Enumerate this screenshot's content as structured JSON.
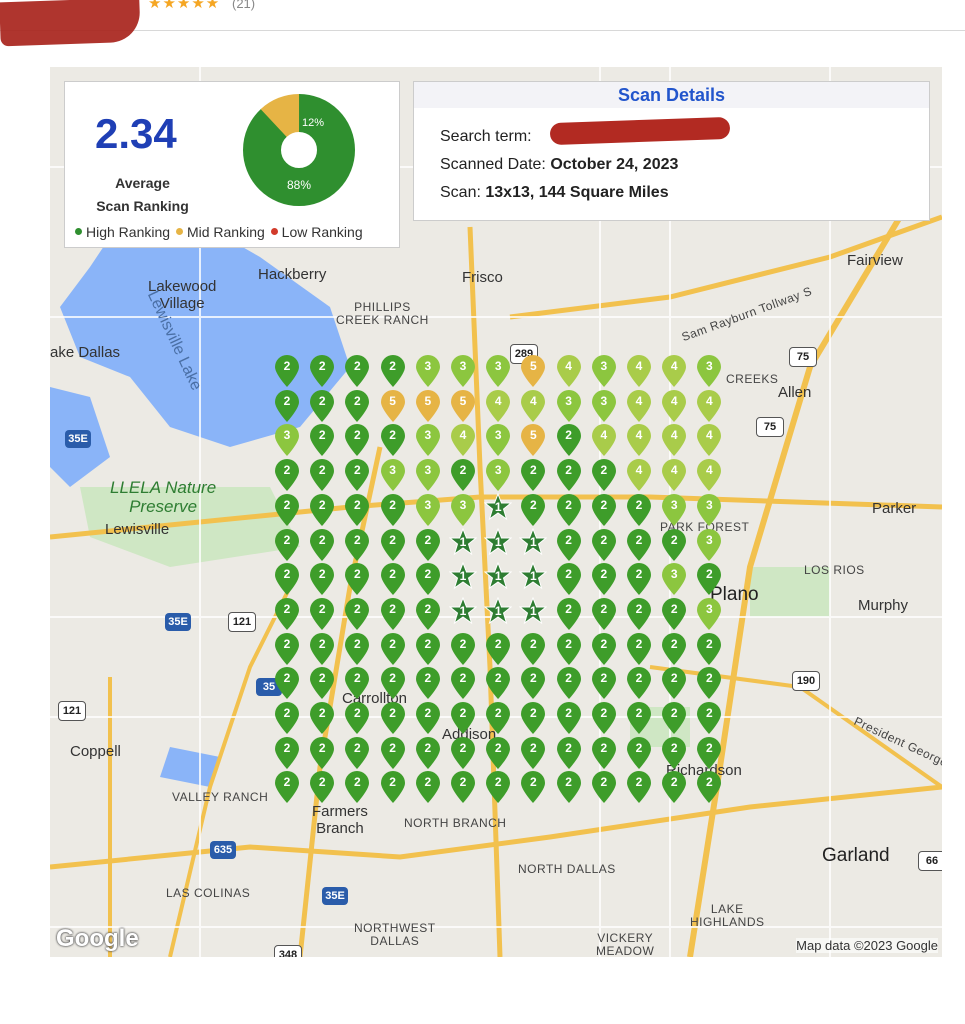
{
  "header": {
    "stars": "★★★★★",
    "review_count": "(21)"
  },
  "summary": {
    "average_value": "2.34",
    "average_label_line1": "Average",
    "average_label_line2": "Scan Ranking",
    "donut": {
      "high_pct_label": "88%",
      "mid_pct_label": "12%",
      "high_fraction": 0.88,
      "mid_fraction": 0.12
    },
    "legend": {
      "high": "High Ranking",
      "mid": "Mid Ranking",
      "low": "Low Ranking"
    },
    "colors": {
      "high": "#2f8f2f",
      "mid": "#e6b445",
      "low": "#d23b2b"
    }
  },
  "scan_details": {
    "title": "Scan Details",
    "search_term_label": "Search term:",
    "scanned_date_label": "Scanned Date:",
    "scanned_date_value": "October 24, 2023",
    "scan_label": "Scan:",
    "scan_value": "13x13, 144 Square Miles"
  },
  "map_labels": {
    "frisco": "Frisco",
    "fairview": "Fairview",
    "hackberry": "Hackberry",
    "lakewood_village": "Lakewood\nVillage",
    "lewisville_lake": "Lewisville Lake",
    "lake_dallas": "ake Dallas",
    "phillips": "PHILLIPS\nCREEK RANCH",
    "allen": "Allen",
    "parker": "Parker",
    "los_rios": "LOS RIOS",
    "plano": "Plano",
    "murphy": "Murphy",
    "sam_rayburn": "Sam Rayburn Tollway S",
    "lewisville": "Lewisville",
    "llela": "LLELA Nature\nPreserve",
    "coppell": "Coppell",
    "valley_ranch": "VALLEY RANCH",
    "farmers_branch": "Farmers\nBranch",
    "north_branch": "NORTH BRANCH",
    "north_dallas": "NORTH DALLAS",
    "garland": "Garland",
    "las_colinas": "LAS COLINAS",
    "northwest_dallas": "NORTHWEST\nDALLAS",
    "vickery_meadow": "VICKERY\nMEADOW",
    "lake_highlands": "LAKE\nHIGHLANDS",
    "president_george": "President George",
    "park_forest": "PARK FOREST",
    "creeks": "CREEKS",
    "carrollton": "Carrollton",
    "addison": "Addison",
    "richardson": "Richardson",
    "attribution": "Map data ©2023 Google",
    "google": "Google"
  },
  "shields": {
    "i35e": "35E",
    "i635": "635",
    "us75": "75",
    "s121": "121",
    "s190": "190",
    "s289": "289",
    "s348": "348",
    "s66": "66",
    "i35": "35"
  },
  "grid": {
    "rows": [
      [
        2,
        2,
        2,
        2,
        3,
        3,
        3,
        5,
        4,
        3,
        4,
        4,
        3
      ],
      [
        2,
        2,
        2,
        5,
        5,
        5,
        4,
        4,
        3,
        3,
        4,
        4,
        4
      ],
      [
        3,
        2,
        2,
        2,
        3,
        4,
        3,
        5,
        2,
        4,
        4,
        4,
        4
      ],
      [
        2,
        2,
        2,
        3,
        3,
        2,
        3,
        2,
        2,
        2,
        4,
        4,
        4
      ],
      [
        2,
        2,
        2,
        2,
        3,
        3,
        1,
        2,
        2,
        2,
        2,
        3,
        3
      ],
      [
        2,
        2,
        2,
        2,
        2,
        1,
        1,
        1,
        2,
        2,
        2,
        2,
        3
      ],
      [
        2,
        2,
        2,
        2,
        2,
        1,
        1,
        1,
        2,
        2,
        2,
        3,
        2
      ],
      [
        2,
        2,
        2,
        2,
        2,
        1,
        1,
        1,
        2,
        2,
        2,
        2,
        3
      ],
      [
        2,
        2,
        2,
        2,
        2,
        2,
        2,
        2,
        2,
        2,
        2,
        2,
        2
      ],
      [
        2,
        2,
        2,
        2,
        2,
        2,
        2,
        2,
        2,
        2,
        2,
        2,
        2
      ],
      [
        2,
        2,
        2,
        2,
        2,
        2,
        2,
        2,
        2,
        2,
        2,
        2,
        2
      ],
      [
        2,
        2,
        2,
        2,
        2,
        2,
        2,
        2,
        2,
        2,
        2,
        2,
        2
      ],
      [
        2,
        2,
        2,
        2,
        2,
        2,
        2,
        2,
        2,
        2,
        2,
        2,
        2
      ]
    ],
    "rank_colors": {
      "1": "#2e7d32",
      "2": "#3e9d2a",
      "3": "#8cc63f",
      "4": "#a9cc4a",
      "5": "#e6b445"
    }
  }
}
